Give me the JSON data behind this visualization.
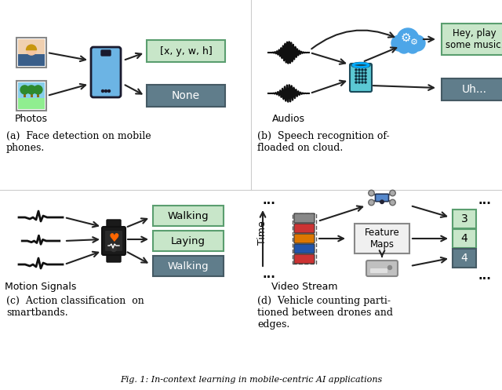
{
  "figure_width": 6.4,
  "figure_height": 4.97,
  "background_color": "#ffffff",
  "caption": "Fig. 1: In-context learning in mobile-centric AI applications",
  "subfig_a": {
    "label": "(a)  Face detection on mobile\nphones.",
    "green_box1": {
      "text": "[x, y, w, h]",
      "color": "#c8e6c9",
      "edge": "#5a9e6f"
    },
    "gray_box1": {
      "text": "None",
      "color": "#607d8b",
      "edge": "#455a64"
    },
    "photos_label": "Photos"
  },
  "subfig_b": {
    "label": "(b)  Speech recognition of-\nfloaded on cloud.",
    "green_box1": {
      "text": "Hey, play\nsome music.",
      "color": "#c8e6c9",
      "edge": "#5a9e6f"
    },
    "gray_box1": {
      "text": "Uh...",
      "color": "#607d8b",
      "edge": "#455a64"
    },
    "audios_label": "Audios"
  },
  "subfig_c": {
    "label": "(c)  Action classification  on\nsmartbands.",
    "green_box1": {
      "text": "Walking",
      "color": "#c8e6c9",
      "edge": "#5a9e6f"
    },
    "green_box2": {
      "text": "Laying",
      "color": "#c8e6c9",
      "edge": "#5a9e6f"
    },
    "gray_box1": {
      "text": "Walking",
      "color": "#607d8b",
      "edge": "#455a64"
    },
    "motion_label": "Motion Signals"
  },
  "subfig_d": {
    "label": "(d)  Vehicle counting parti-\ntioned between drones and\nedges.",
    "feature_box": {
      "text": "Feature\nMaps",
      "color": "#f0f0f0",
      "edge": "#888888"
    },
    "num_boxes": [
      {
        "text": "3",
        "color": "#c8e6c9",
        "edge": "#5a9e6f"
      },
      {
        "text": "4",
        "color": "#c8e6c9",
        "edge": "#5a9e6f"
      },
      {
        "text": "4",
        "color": "#607d8b",
        "edge": "#455a64"
      }
    ],
    "video_label": "Video Stream",
    "time_label": "Time"
  },
  "green_color": "#c8e6c9",
  "green_edge": "#5a9e6f",
  "gray_color": "#607d8b",
  "gray_edge": "#455a64"
}
